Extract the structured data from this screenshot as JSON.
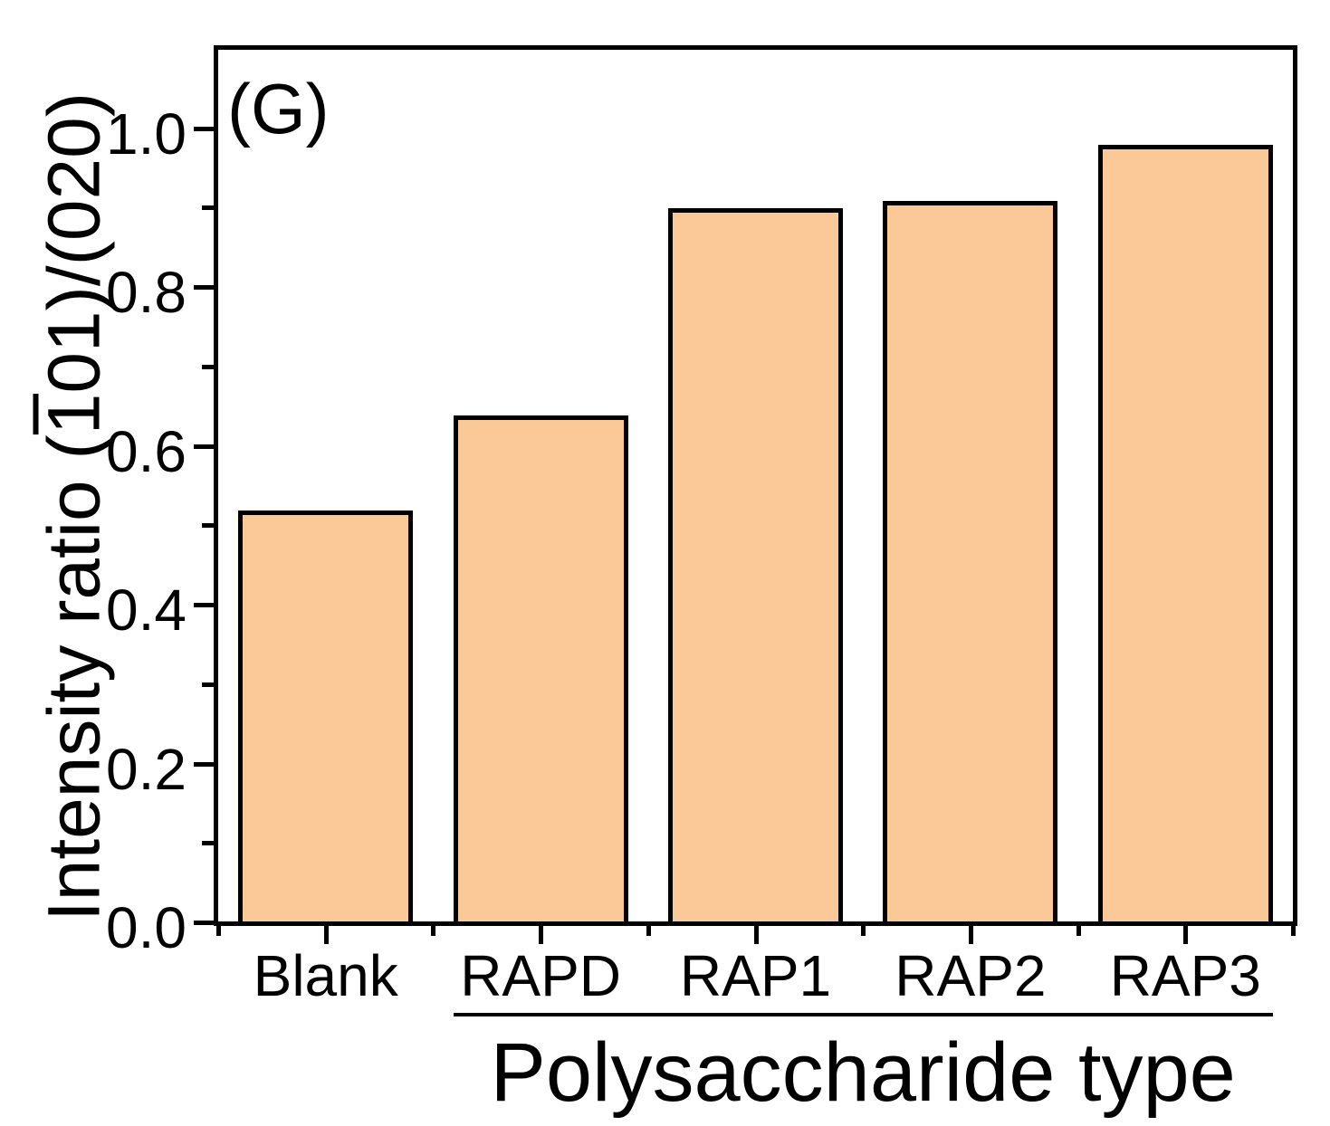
{
  "panel_label": "(G)",
  "chart_data": {
    "type": "bar",
    "categories": [
      "Blank",
      "RAPD",
      "RAP1",
      "RAP2",
      "RAP3"
    ],
    "values": [
      0.52,
      0.64,
      0.9,
      0.91,
      0.98
    ],
    "title": "",
    "xlabel": "Polysaccharide type",
    "ylabel": "Intensity ratio (1̅01)/(020)",
    "ylabel_parts": {
      "prefix": "Intensity ratio (",
      "overbar": "1",
      "suffix": "01)/(020)"
    },
    "ylim": [
      0,
      1.1
    ],
    "yticks": [
      {
        "value": 0.0,
        "label": "0.0"
      },
      {
        "value": 0.2,
        "label": "0.2"
      },
      {
        "value": 0.4,
        "label": "0.4"
      },
      {
        "value": 0.6,
        "label": "0.6"
      },
      {
        "value": 0.8,
        "label": "0.8"
      },
      {
        "value": 1.0,
        "label": "1.0"
      }
    ],
    "yminor_step": 0.1,
    "grid": false,
    "legend": null,
    "bar_color": "#FBC897",
    "bar_edge_color": "#000000",
    "axis_color": "#000000",
    "background_color": "#FFFFFF",
    "group_underline": {
      "from": "RAPD",
      "to": "RAP3"
    }
  }
}
